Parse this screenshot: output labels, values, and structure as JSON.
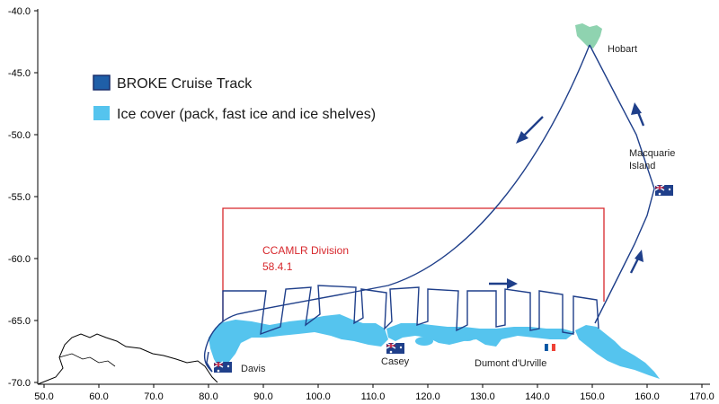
{
  "axes": {
    "x_ticks": [
      "50.0",
      "60.0",
      "70.0",
      "80.0",
      "90.0",
      "100.0",
      "110.0",
      "120.0",
      "130.0",
      "140.0",
      "150.0",
      "160.0",
      "170.0"
    ],
    "y_ticks": [
      "-40.0",
      "-45.0",
      "-50.0",
      "-55.0",
      "-60.0",
      "-65.0",
      "-70.0"
    ],
    "x_range": [
      50,
      170
    ],
    "y_range": [
      -40,
      -70
    ]
  },
  "legend": {
    "track_label": "BROKE Cruise Track",
    "ice_label": "Ice cover (pack, fast ice and ice shelves)"
  },
  "region": {
    "label_line1": "CCAMLR Division",
    "label_line2": "58.4.1"
  },
  "places": {
    "hobart": "Hobart",
    "macquarie_line1": "Macquarie",
    "macquarie_line2": "Island",
    "davis": "Davis",
    "casey": "Casey",
    "dumont": "Dumont d'Urville"
  },
  "colors": {
    "track": "#1f3f8a",
    "ice": "#55c4ee",
    "ccamlr": "#d7262b",
    "tasmania": "#8fd3b0",
    "coast": "#000000"
  }
}
